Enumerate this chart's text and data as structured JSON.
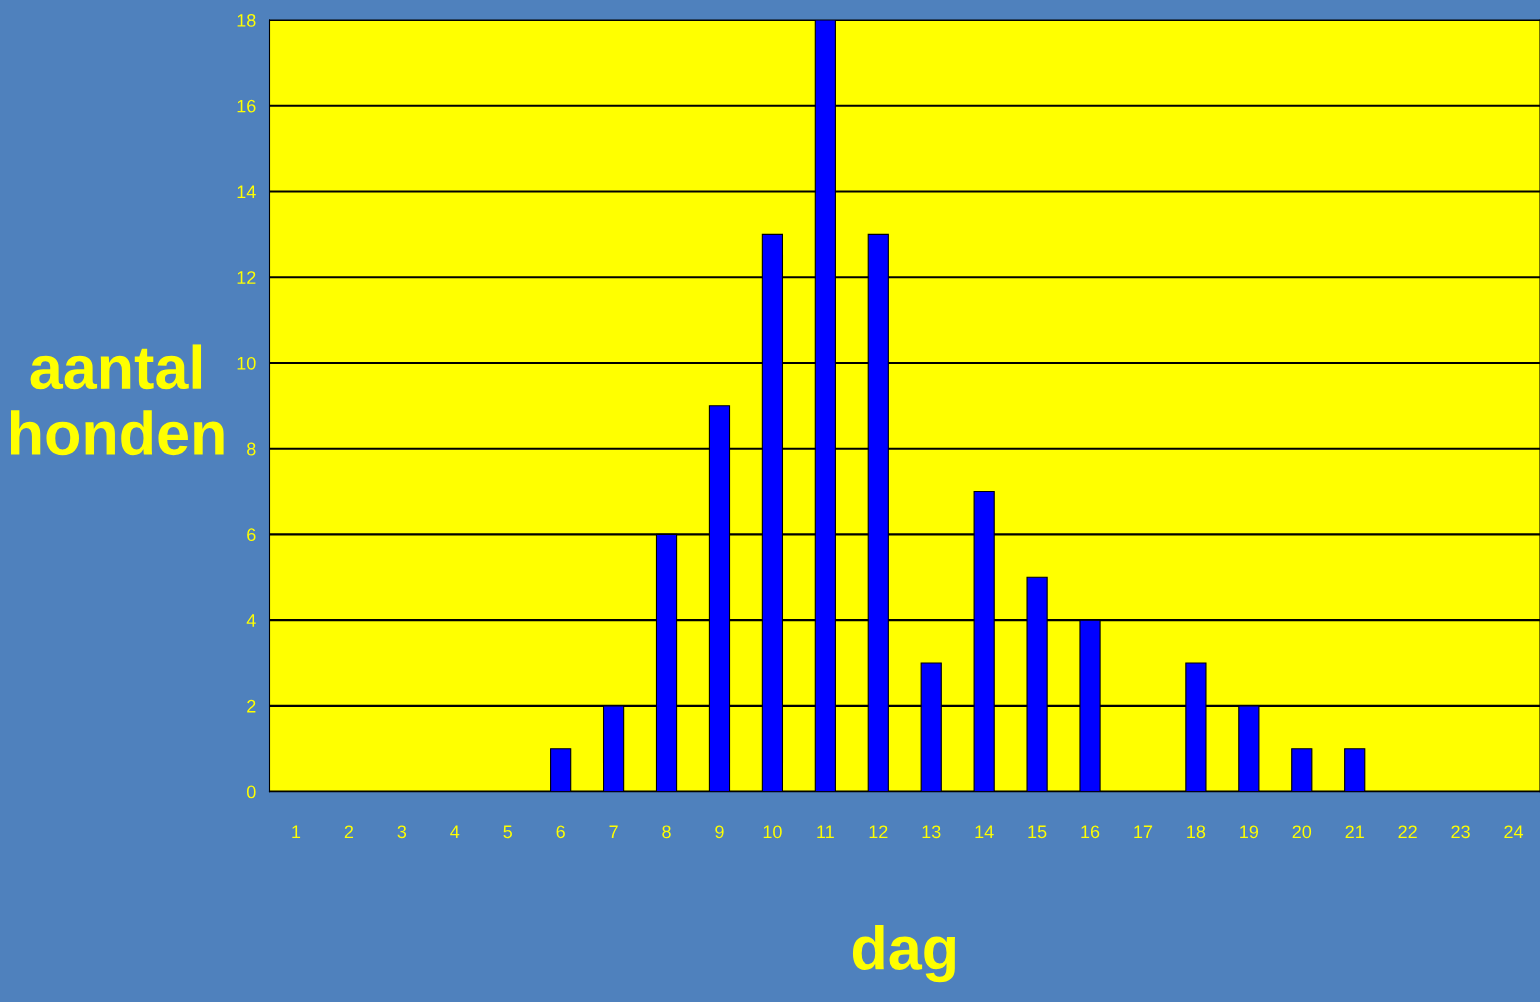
{
  "chart_data": {
    "type": "bar",
    "xlabel": "dag",
    "ylabel": "aantal\nhonden",
    "categories": [
      "1",
      "2",
      "3",
      "4",
      "5",
      "6",
      "7",
      "8",
      "9",
      "10",
      "11",
      "12",
      "13",
      "14",
      "15",
      "16",
      "17",
      "18",
      "19",
      "20",
      "21",
      "22",
      "23",
      "24"
    ],
    "values": [
      0,
      0,
      0,
      0,
      0,
      1,
      2,
      6,
      9,
      13,
      18,
      13,
      3,
      7,
      5,
      4,
      0,
      3,
      2,
      1,
      1,
      0,
      0,
      0
    ],
    "color": "#0000ff",
    "ylim": [
      0,
      18
    ],
    "yticks": [
      0,
      2,
      4,
      6,
      8,
      10,
      12,
      14,
      16,
      18
    ],
    "grid": "y",
    "legend": false
  }
}
